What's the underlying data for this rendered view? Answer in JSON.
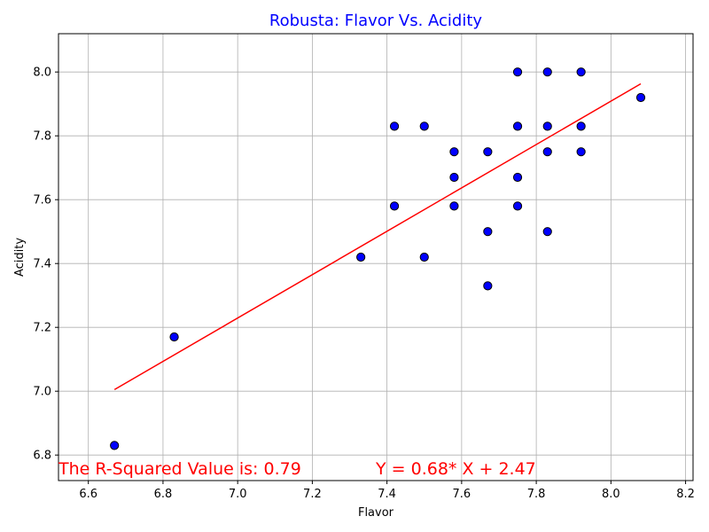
{
  "chart_data": {
    "type": "scatter",
    "title": "Robusta: Flavor Vs. Acidity",
    "title_color": "#0000ff",
    "xlabel": "Flavor",
    "ylabel": "Acidity",
    "xlim": [
      6.52,
      8.22
    ],
    "ylim": [
      6.72,
      8.12
    ],
    "xticks": [
      6.6,
      6.8,
      7.0,
      7.2,
      7.4,
      7.6,
      7.8,
      8.0,
      8.2
    ],
    "yticks": [
      6.8,
      7.0,
      7.2,
      7.4,
      7.6,
      7.8,
      8.0
    ],
    "xtick_labels": [
      "6.6",
      "6.8",
      "7.0",
      "7.2",
      "7.4",
      "7.6",
      "7.8",
      "8.0",
      "8.2"
    ],
    "ytick_labels": [
      "6.8",
      "7.0",
      "7.2",
      "7.4",
      "7.6",
      "7.8",
      "8.0"
    ],
    "grid": true,
    "point_color": "#0000ff",
    "point_edge_color": "#000000",
    "line_color": "#ff0000",
    "points": [
      {
        "x": 6.67,
        "y": 6.83
      },
      {
        "x": 6.83,
        "y": 7.17
      },
      {
        "x": 7.33,
        "y": 7.42
      },
      {
        "x": 7.42,
        "y": 7.83
      },
      {
        "x": 7.42,
        "y": 7.58
      },
      {
        "x": 7.5,
        "y": 7.83
      },
      {
        "x": 7.5,
        "y": 7.42
      },
      {
        "x": 7.58,
        "y": 7.75
      },
      {
        "x": 7.58,
        "y": 7.67
      },
      {
        "x": 7.58,
        "y": 7.58
      },
      {
        "x": 7.67,
        "y": 7.75
      },
      {
        "x": 7.67,
        "y": 7.5
      },
      {
        "x": 7.67,
        "y": 7.33
      },
      {
        "x": 7.75,
        "y": 8.0
      },
      {
        "x": 7.75,
        "y": 7.83
      },
      {
        "x": 7.75,
        "y": 7.67
      },
      {
        "x": 7.75,
        "y": 7.58
      },
      {
        "x": 7.83,
        "y": 8.0
      },
      {
        "x": 7.83,
        "y": 7.83
      },
      {
        "x": 7.83,
        "y": 7.75
      },
      {
        "x": 7.83,
        "y": 7.5
      },
      {
        "x": 7.92,
        "y": 8.0
      },
      {
        "x": 7.92,
        "y": 7.83
      },
      {
        "x": 7.92,
        "y": 7.75
      },
      {
        "x": 8.08,
        "y": 7.92
      }
    ],
    "regression_line": {
      "x": [
        6.67,
        8.08
      ],
      "y": [
        7.005,
        7.963
      ]
    },
    "annotations": [
      {
        "text": "The R-Squared Value is: 0.79",
        "x": 6.52,
        "y": 6.74,
        "color": "#ff0000"
      },
      {
        "text": "Y = 0.68* X + 2.47",
        "x": 7.37,
        "y": 6.74,
        "color": "#ff0000"
      }
    ]
  }
}
